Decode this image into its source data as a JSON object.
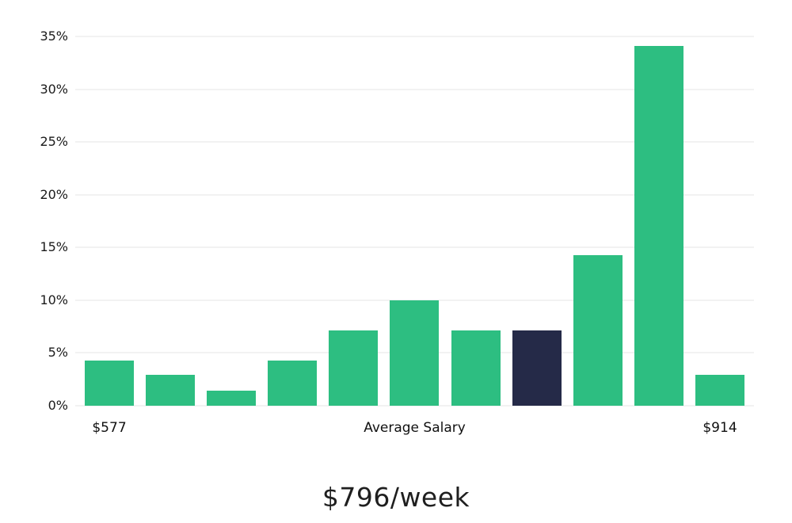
{
  "chart_data": {
    "type": "bar",
    "title": "",
    "caption": "$796/week",
    "ylim": [
      0,
      35
    ],
    "tick_step": 5,
    "y_tick_suffix": "%",
    "grid": "horizontal",
    "values": [
      4.3,
      2.9,
      1.4,
      4.3,
      7.1,
      10.0,
      7.1,
      7.1,
      14.3,
      34.1,
      2.9
    ],
    "highlight_index": 7,
    "colors": {
      "bar": "#2dbe81",
      "highlight": "#252a48",
      "gridline": "#e4e4e4",
      "background": "#ffffff"
    },
    "x_labels": {
      "left": "$577",
      "center": "Average Salary",
      "right": "$914"
    }
  }
}
